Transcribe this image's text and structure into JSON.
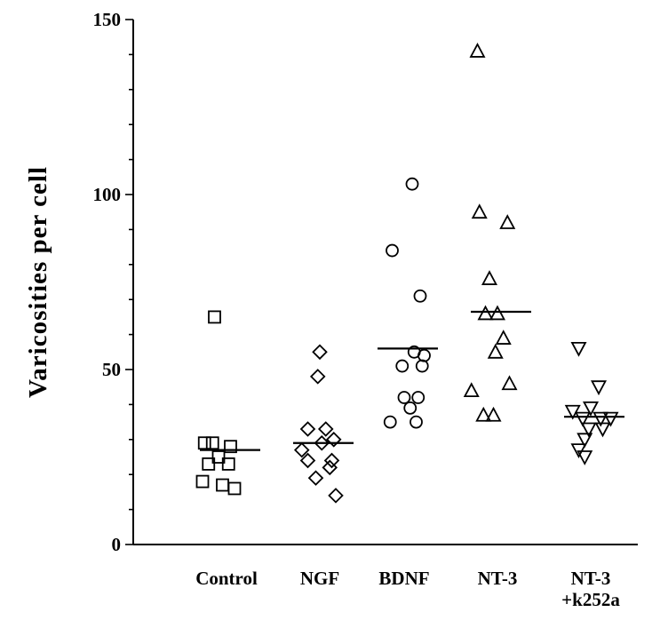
{
  "chart_data": {
    "type": "scatter",
    "title": "",
    "xlabel": "",
    "ylabel": "Varicosities per cell",
    "ylim": [
      0,
      150
    ],
    "y_ticks": [
      "0",
      "50",
      "100",
      "150"
    ],
    "grid": false,
    "categories": [
      "Control",
      "NGF",
      "BDNF",
      "NT-3",
      "NT-3\n+k252a"
    ],
    "category_labels": [
      [
        "Control"
      ],
      [
        "NGF"
      ],
      [
        "BDNF"
      ],
      [
        "NT-3"
      ],
      [
        "NT-3",
        "+k252a"
      ]
    ],
    "series": [
      {
        "category": "Control",
        "marker": "square",
        "mean": 27,
        "points": [
          {
            "offset": -0.3,
            "value": 65
          },
          {
            "offset": -0.55,
            "value": 29
          },
          {
            "offset": -0.35,
            "value": 29
          },
          {
            "offset": 0.1,
            "value": 28
          },
          {
            "offset": -0.2,
            "value": 25
          },
          {
            "offset": -0.45,
            "value": 23
          },
          {
            "offset": 0.05,
            "value": 23
          },
          {
            "offset": -0.6,
            "value": 18
          },
          {
            "offset": -0.1,
            "value": 17
          },
          {
            "offset": 0.2,
            "value": 16
          }
        ]
      },
      {
        "category": "NGF",
        "marker": "diamond",
        "mean": 29,
        "points": [
          {
            "offset": 0.0,
            "value": 55
          },
          {
            "offset": -0.05,
            "value": 48
          },
          {
            "offset": -0.3,
            "value": 33
          },
          {
            "offset": 0.15,
            "value": 33
          },
          {
            "offset": 0.35,
            "value": 30
          },
          {
            "offset": 0.05,
            "value": 29
          },
          {
            "offset": -0.45,
            "value": 27
          },
          {
            "offset": -0.3,
            "value": 24
          },
          {
            "offset": 0.3,
            "value": 24
          },
          {
            "offset": 0.25,
            "value": 22
          },
          {
            "offset": -0.1,
            "value": 19
          },
          {
            "offset": 0.4,
            "value": 14
          }
        ]
      },
      {
        "category": "BDNF",
        "marker": "circle",
        "mean": 56,
        "points": [
          {
            "offset": 0.2,
            "value": 103
          },
          {
            "offset": -0.3,
            "value": 84
          },
          {
            "offset": 0.4,
            "value": 71
          },
          {
            "offset": 0.25,
            "value": 55
          },
          {
            "offset": 0.5,
            "value": 54
          },
          {
            "offset": -0.05,
            "value": 51
          },
          {
            "offset": 0.45,
            "value": 51
          },
          {
            "offset": 0.0,
            "value": 42
          },
          {
            "offset": 0.35,
            "value": 42
          },
          {
            "offset": 0.15,
            "value": 39
          },
          {
            "offset": -0.35,
            "value": 35
          },
          {
            "offset": 0.3,
            "value": 35
          }
        ]
      },
      {
        "category": "NT-3",
        "marker": "triangle-up",
        "mean": 66.5,
        "points": [
          {
            "offset": -0.5,
            "value": 141
          },
          {
            "offset": -0.45,
            "value": 95
          },
          {
            "offset": 0.25,
            "value": 92
          },
          {
            "offset": -0.2,
            "value": 76
          },
          {
            "offset": -0.3,
            "value": 66
          },
          {
            "offset": 0.0,
            "value": 66
          },
          {
            "offset": 0.15,
            "value": 59
          },
          {
            "offset": -0.05,
            "value": 55
          },
          {
            "offset": 0.3,
            "value": 46
          },
          {
            "offset": -0.65,
            "value": 44
          },
          {
            "offset": -0.35,
            "value": 37
          },
          {
            "offset": -0.1,
            "value": 37
          }
        ]
      },
      {
        "category": "NT-3\n+k252a",
        "marker": "triangle-down",
        "mean": 36.5,
        "points": [
          {
            "offset": -0.3,
            "value": 56
          },
          {
            "offset": 0.2,
            "value": 45
          },
          {
            "offset": -0.45,
            "value": 38
          },
          {
            "offset": 0.0,
            "value": 39
          },
          {
            "offset": -0.2,
            "value": 36
          },
          {
            "offset": 0.25,
            "value": 36
          },
          {
            "offset": 0.5,
            "value": 36
          },
          {
            "offset": -0.05,
            "value": 33
          },
          {
            "offset": 0.3,
            "value": 33
          },
          {
            "offset": -0.15,
            "value": 30
          },
          {
            "offset": -0.3,
            "value": 27
          },
          {
            "offset": -0.15,
            "value": 25
          }
        ]
      }
    ]
  }
}
